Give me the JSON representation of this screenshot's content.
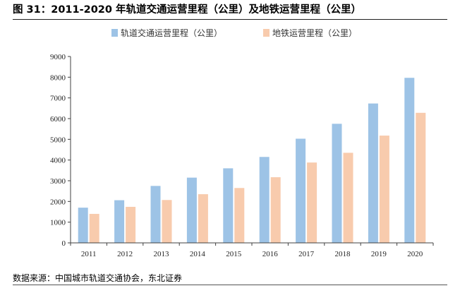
{
  "figure": {
    "title": "图 31：2011-2020 年轨道交通运营里程（公里）及地铁运营里程（公里）",
    "source": "数据来源：中国城市轨道交通协会，东北证券"
  },
  "colors": {
    "series1": "#9dc3e6",
    "series2": "#f8cbad",
    "axis": "#404040"
  },
  "chart_data": {
    "type": "bar",
    "title": "",
    "xlabel": "",
    "ylabel": "",
    "ylim": [
      0,
      9000
    ],
    "yticks": [
      0,
      1000,
      2000,
      3000,
      4000,
      5000,
      6000,
      7000,
      8000,
      9000
    ],
    "grid": false,
    "legend_position": "top",
    "categories": [
      "2011",
      "2012",
      "2013",
      "2014",
      "2015",
      "2016",
      "2017",
      "2018",
      "2019",
      "2020"
    ],
    "series": [
      {
        "name": "轨道交通运营里程（公里）",
        "values": [
          1700,
          2060,
          2750,
          3150,
          3600,
          4150,
          5030,
          5750,
          6730,
          7970
        ]
      },
      {
        "name": "地铁运营里程（公里）",
        "values": [
          1400,
          1740,
          2070,
          2350,
          2650,
          3170,
          3880,
          4350,
          5180,
          6280
        ]
      }
    ]
  }
}
